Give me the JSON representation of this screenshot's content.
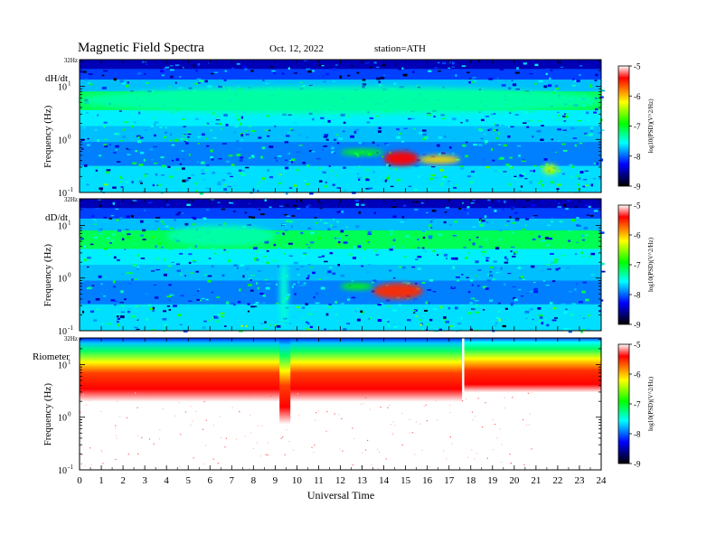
{
  "header": {
    "title": "Magnetic  Field  Spectra",
    "date": "Oct. 12, 2022",
    "station": "station=ATH"
  },
  "chart_data": [
    {
      "type": "heatmap",
      "panel_label": "dH/dt",
      "ylabel": "Frequency  (Hz)",
      "yscale": "log",
      "ylim_hz": [
        0.1,
        32
      ],
      "y_top_label": "32Hz",
      "y_ticks": [
        {
          "base": "10",
          "exp": "1"
        },
        {
          "base": "10",
          "exp": "0"
        },
        {
          "base": "10",
          "exp": "-1"
        }
      ],
      "colorbar": {
        "label": "log10(PSD)(V^2/Hz)",
        "range": [
          -9,
          -5
        ],
        "ticks": [
          "-5",
          "-6",
          "-7",
          "-8",
          "-9"
        ],
        "colors": [
          "#ffffff",
          "#ff0000",
          "#ffff00",
          "#00ff00",
          "#00ffff",
          "#0000ff",
          "#000000"
        ]
      },
      "features": [
        {
          "t_start": 0,
          "t_end": 24,
          "f_low": 3,
          "f_high": 10,
          "level": -7.3
        },
        {
          "t_start": 14,
          "t_end": 15.6,
          "f_low": 0.32,
          "f_high": 0.6,
          "level": -5.6
        },
        {
          "t_start": 15.6,
          "t_end": 17.5,
          "f_low": 0.35,
          "f_high": 0.5,
          "level": -6.1
        },
        {
          "t_start": 12,
          "t_end": 14,
          "f_low": 0.5,
          "f_high": 0.65,
          "level": -6.9
        },
        {
          "t_start": 21.3,
          "t_end": 22,
          "f_low": 0.22,
          "f_high": 0.34,
          "level": -6.4
        }
      ]
    },
    {
      "type": "heatmap",
      "panel_label": "dD/dt",
      "ylabel": "Frequency  (Hz)",
      "yscale": "log",
      "ylim_hz": [
        0.1,
        32
      ],
      "y_top_label": "32Hz",
      "y_ticks": [
        {
          "base": "10",
          "exp": "1"
        },
        {
          "base": "10",
          "exp": "0"
        },
        {
          "base": "10",
          "exp": "-1"
        }
      ],
      "colorbar": {
        "label": "log10(PSD)(V^2/Hz)",
        "range": [
          -9,
          -5
        ],
        "ticks": [
          "-5",
          "-6",
          "-7",
          "-8",
          "-9"
        ],
        "colors": [
          "#ffffff",
          "#ff0000",
          "#ffff00",
          "#00ff00",
          "#00ffff",
          "#0000ff",
          "#000000"
        ]
      },
      "features": [
        {
          "t_start": 4,
          "t_end": 9,
          "f_low": 4,
          "f_high": 10,
          "level": -7.3
        },
        {
          "t_start": 13.5,
          "t_end": 15.8,
          "f_low": 0.4,
          "f_high": 0.8,
          "level": -5.7
        },
        {
          "t_start": 12,
          "t_end": 13.5,
          "f_low": 0.6,
          "f_high": 0.8,
          "level": -6.9
        },
        {
          "t_start": 9.2,
          "t_end": 9.6,
          "f_low": 0.12,
          "f_high": 2,
          "level": -7.4
        }
      ]
    },
    {
      "type": "heatmap",
      "panel_label": "Riometer",
      "ylabel": "Frequency  (Hz)",
      "yscale": "log",
      "ylim_hz": [
        0.1,
        32
      ],
      "y_top_label": "32Hz",
      "y_ticks": [
        {
          "base": "10",
          "exp": "1"
        },
        {
          "base": "10",
          "exp": "0"
        },
        {
          "base": "10",
          "exp": "-1"
        }
      ],
      "colorbar": {
        "label": "log10(PSD)(V^2/Hz)",
        "range": [
          -9,
          -5
        ],
        "ticks": [
          "-5",
          "-6",
          "-7",
          "-8",
          "-9"
        ],
        "colors": [
          "#ffffff",
          "#ff0000",
          "#ffff00",
          "#00ff00",
          "#00ffff",
          "#0000ff",
          "#000000"
        ]
      },
      "features": [
        {
          "t_start": 0,
          "t_end": 17.6,
          "f_red_low": 4,
          "f_green": 14,
          "level_description": "quiet"
        },
        {
          "t_start": 9.2,
          "t_end": 9.7,
          "f_red_low": 1.5,
          "level_description": "dip"
        },
        {
          "t_start": 17.7,
          "t_end": 24,
          "f_red_low": 6,
          "f_green": 12,
          "level_description": "disturbed"
        }
      ]
    }
  ],
  "x_axis": {
    "label": "Universal Time",
    "xlim": [
      0,
      24
    ],
    "ticks": [
      "0",
      "1",
      "2",
      "3",
      "4",
      "5",
      "6",
      "7",
      "8",
      "9",
      "10",
      "11",
      "12",
      "13",
      "14",
      "15",
      "16",
      "17",
      "18",
      "19",
      "20",
      "21",
      "22",
      "23",
      "24"
    ]
  }
}
